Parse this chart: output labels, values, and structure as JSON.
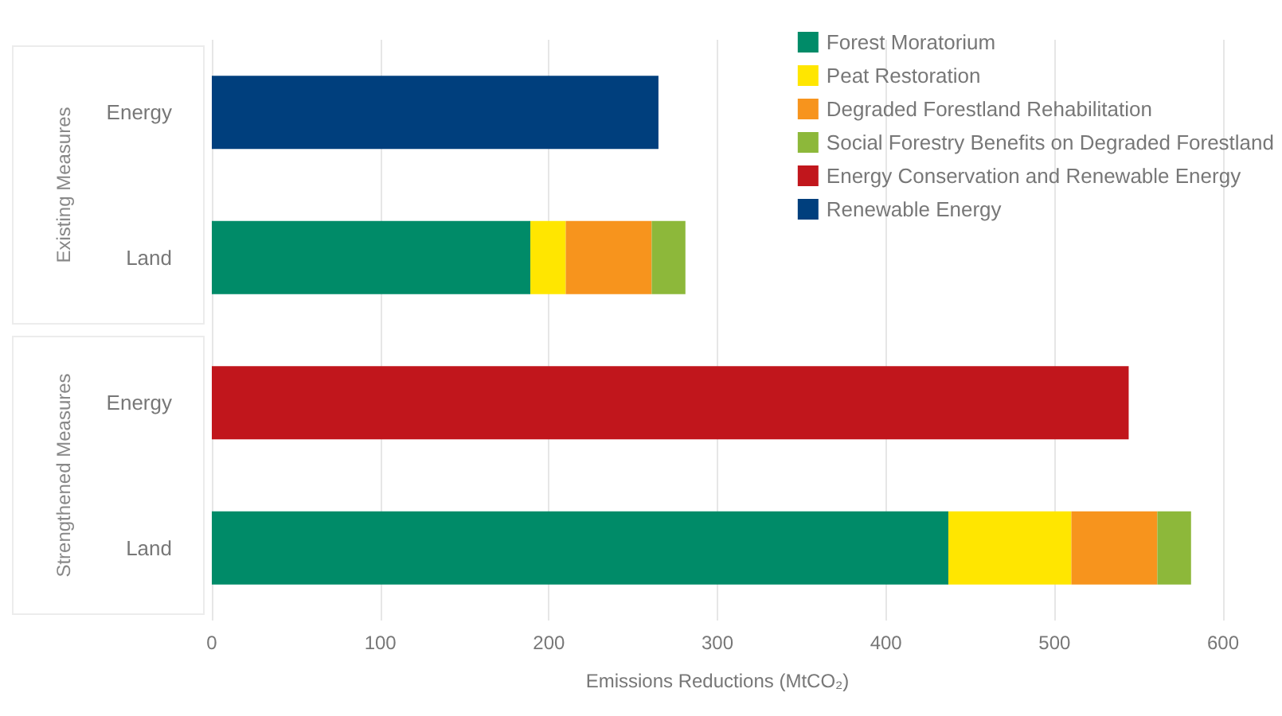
{
  "chart_data": {
    "type": "bar",
    "orientation": "horizontal",
    "stacked": true,
    "categories": [
      "Energy",
      "Land",
      "Energy",
      "Land"
    ],
    "series": [
      {
        "name": "Forest Moratorium",
        "color": "#008b68",
        "values": [
          null,
          189,
          null,
          437
        ]
      },
      {
        "name": "Peat Restoration",
        "color": "#ffe600",
        "values": [
          null,
          21,
          null,
          73
        ]
      },
      {
        "name": "Degraded Forestland Rehabilitation",
        "color": "#f7941d",
        "values": [
          null,
          51,
          null,
          51
        ]
      },
      {
        "name": "Social Forestry Benefits on Degraded Forestland",
        "color": "#8db83a",
        "values": [
          null,
          20,
          null,
          20
        ]
      },
      {
        "name": "Energy Conservation and Renewable Energy",
        "color": "#c1161c",
        "values": [
          null,
          null,
          544,
          null
        ]
      },
      {
        "name": "Renewable Energy",
        "color": "#003f7d",
        "values": [
          265,
          null,
          null,
          null
        ]
      }
    ],
    "xlabel": "Emissions Reductions (MtCO₂)",
    "xlim": [
      0,
      600
    ],
    "xticks": [
      0,
      100,
      200,
      300,
      400,
      500,
      600
    ],
    "grid": "x",
    "legend": "top right",
    "annotations": [
      "Existing Measures",
      "Strengthened Measures"
    ]
  }
}
